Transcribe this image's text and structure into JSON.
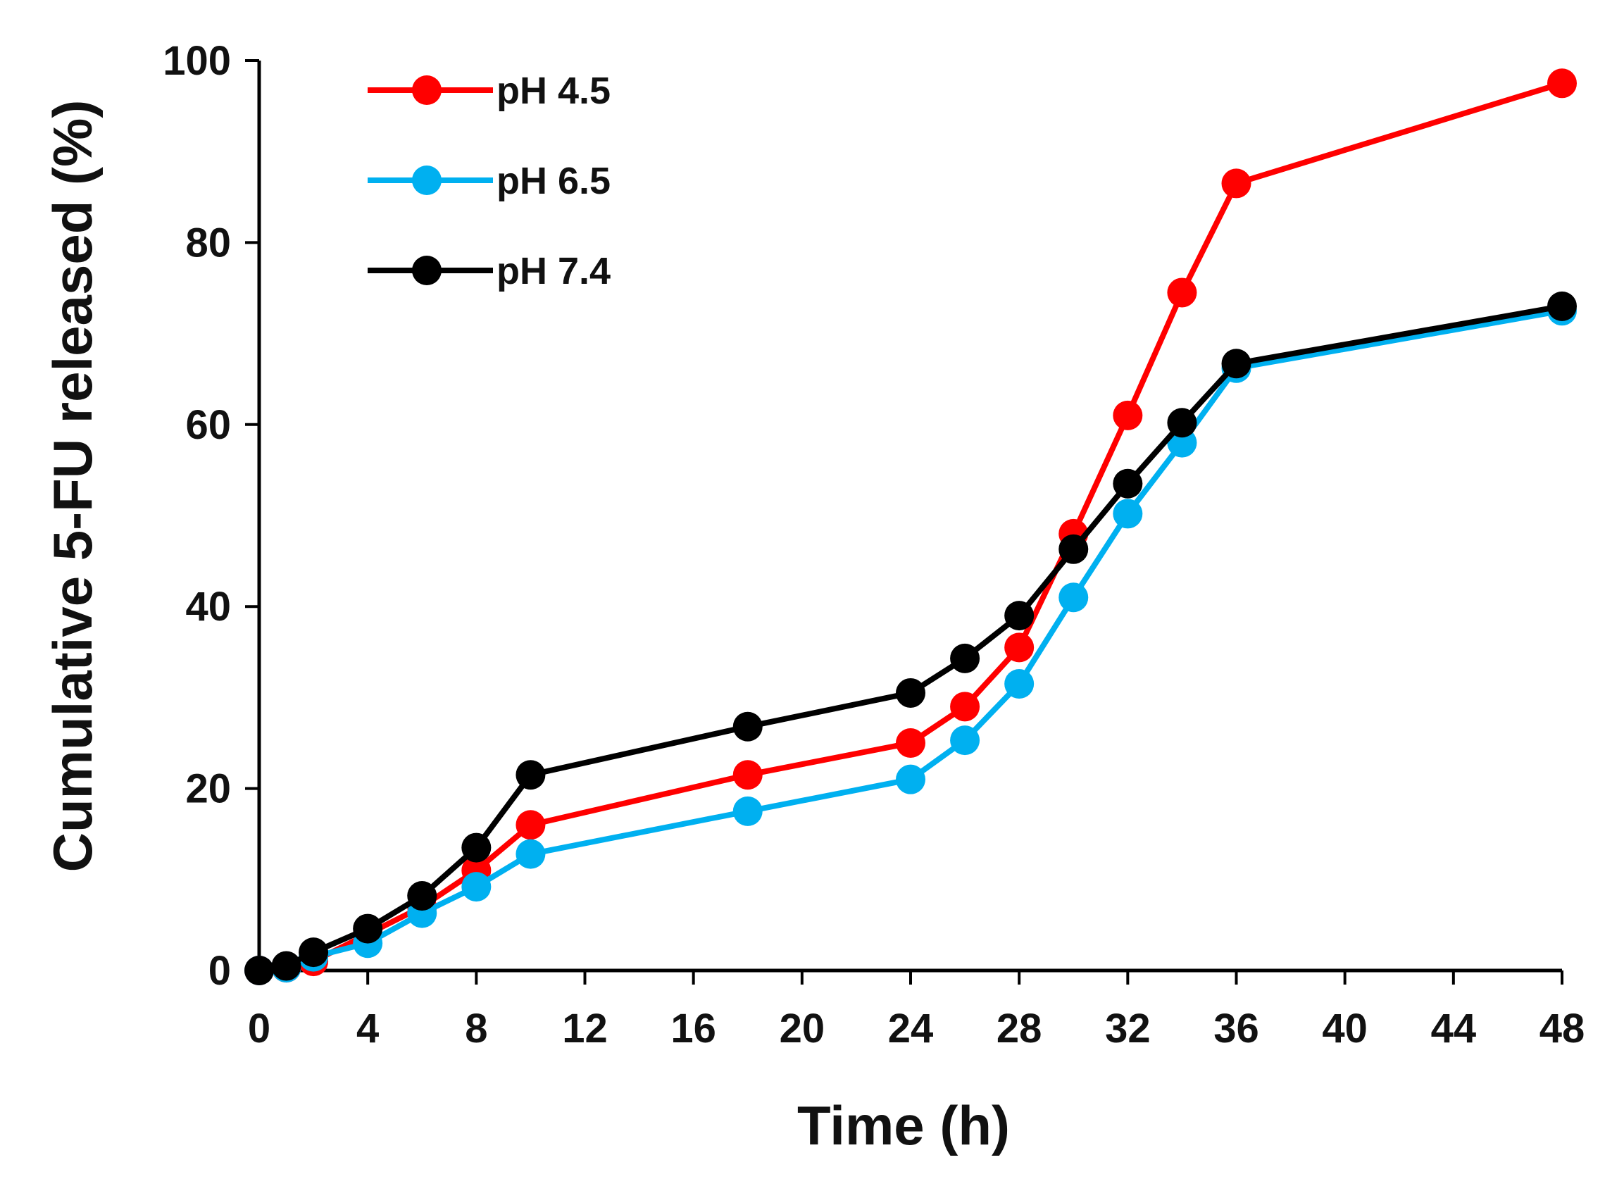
{
  "chart_data": {
    "type": "line",
    "title": "",
    "xlabel": "Time (h)",
    "ylabel": "Cumulative 5-FU released (%)",
    "xlim": [
      0,
      48
    ],
    "ylim": [
      0,
      100
    ],
    "x_ticks": [
      0,
      4,
      8,
      12,
      16,
      20,
      24,
      28,
      32,
      36,
      40,
      44,
      48
    ],
    "x_tick_labels": [
      "0",
      "4",
      "8",
      "12",
      "16",
      "20",
      "24",
      "28",
      "32",
      "36",
      "40",
      "44",
      "48"
    ],
    "y_ticks": [
      0,
      20,
      40,
      60,
      80,
      100
    ],
    "y_tick_labels": [
      "0",
      "20",
      "40",
      "60",
      "80",
      "100"
    ],
    "grid": false,
    "legend_position": "top-left",
    "x": [
      0,
      1,
      2,
      4,
      6,
      8,
      10,
      18,
      24,
      26,
      28,
      30,
      32,
      34,
      36,
      48
    ],
    "series": [
      {
        "name": "pH 4.5",
        "color": "#ff0000",
        "values": [
          0,
          0.3,
          1,
          4,
          7,
          11,
          16,
          21.5,
          25,
          29,
          35.5,
          48,
          61,
          74.5,
          86.5,
          97.5
        ]
      },
      {
        "name": "pH 6.5",
        "color": "#00b0f0",
        "values": [
          0,
          0.3,
          1.5,
          3,
          6.3,
          9.2,
          12.8,
          17.5,
          21,
          25.3,
          31.5,
          41,
          50.2,
          58,
          66.2,
          72.5
        ]
      },
      {
        "name": "pH 7.4",
        "color": "#000000",
        "values": [
          0,
          0.5,
          2,
          4.6,
          8.2,
          13.5,
          21.5,
          26.8,
          30.5,
          34.3,
          39,
          46.3,
          53.5,
          60.2,
          66.7,
          73
        ]
      }
    ]
  }
}
